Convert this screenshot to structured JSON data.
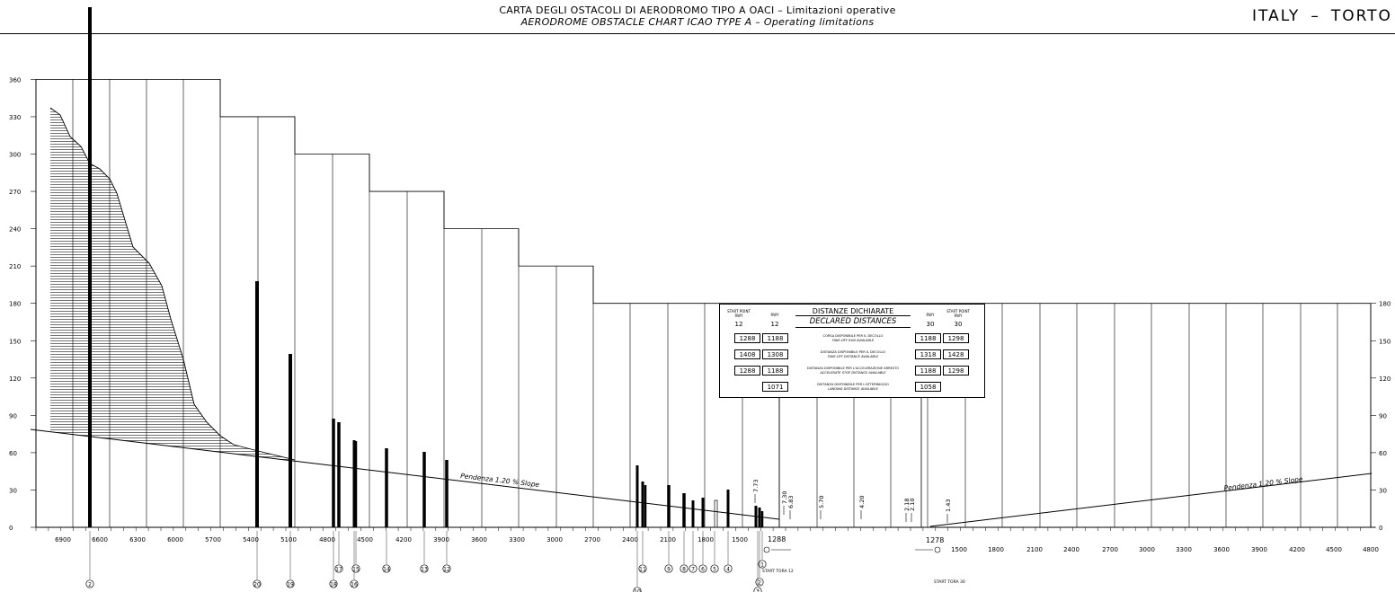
{
  "header": {
    "title_it": "CARTA DEGLI OSTACOLI DI AERODROMO      TIPO A    OACI   –  Limitazioni operative",
    "title_en": "AERODROME OBSTACLE CHART    ICAO TYPE A    –    Operating limitations",
    "country": "ITALY",
    "dash": "–",
    "airport_partial": "TORTO"
  },
  "y_axis_left": {
    "ticks": [
      "0",
      "30",
      "60",
      "90",
      "120",
      "150",
      "180",
      "210",
      "240",
      "270",
      "300",
      "330",
      "360"
    ]
  },
  "y_axis_right": {
    "ticks": [
      "0",
      "30",
      "60",
      "90",
      "120",
      "150",
      "180"
    ]
  },
  "x_axis_left": {
    "ticks": [
      "6900",
      "6600",
      "6300",
      "6000",
      "5700",
      "5400",
      "5100",
      "4800",
      "4500",
      "4200",
      "3900",
      "3600",
      "3300",
      "3000",
      "2700",
      "2400",
      "2100",
      "1800",
      "1500"
    ]
  },
  "x_axis_right": {
    "ticks": [
      "1500",
      "1800",
      "2100",
      "2400",
      "2700",
      "3000",
      "3300",
      "3600",
      "3900",
      "4200",
      "4500",
      "4800"
    ]
  },
  "runway": {
    "end_left_value": "1288",
    "end_right_value": "1278",
    "start_tora_12": "START TORA 12",
    "start_tora_30": "START TORA 30",
    "elev_labels": [
      "7.73",
      "7.30",
      "6.83",
      "5.70",
      "4.20",
      "2.18",
      "2.10",
      "1.43"
    ]
  },
  "slopes": {
    "left": {
      "label": "Pendenza",
      "value": "1.20",
      "unit": "%",
      "label_en": "Slope"
    },
    "right": {
      "label": "Pendenza",
      "value": "1.20",
      "unit": "%",
      "label_en": "Slope"
    }
  },
  "obstacle_ids": [
    "2",
    "20",
    "19",
    "18",
    "17",
    "16",
    "15",
    "14",
    "13",
    "12",
    "10",
    "11",
    "9",
    "8",
    "7",
    "6",
    "5",
    "4",
    "1",
    "2",
    "3"
  ],
  "declared_distances": {
    "title_it": "DISTANZE DICHIARATE",
    "title_en": "DECLARED DISTANCES",
    "col_start12": "START POINT RWY",
    "col_start12_num": "12",
    "col_rwy12": "RWY",
    "col_rwy12_num": "12",
    "col_rwy30": "RWY",
    "col_rwy30_num": "30",
    "col_start30": "START POINT RWY",
    "col_start30_num": "30",
    "rows": [
      {
        "it": "CORSA DISPONIBILE PER IL DECOLLO",
        "en": "TAKE-OFF RUN AVAILABLE",
        "sp12": "1288",
        "r12": "1188",
        "r30": "1188",
        "sp30": "1298"
      },
      {
        "it": "DISTANZA DISPONIBILE PER IL DECOLLO",
        "en": "TAKE-OFF DISTANCE AVAILABLE",
        "sp12": "1408",
        "r12": "1308",
        "r30": "1318",
        "sp30": "1428"
      },
      {
        "it": "DISTANZA DISPONIBILE PER L'ACCELERAZIONE ARRESTO",
        "en": "ACCELERATE STOP DISTANCE AVAILABLE",
        "sp12": "1288",
        "r12": "1188",
        "r30": "1188",
        "sp30": "1298"
      },
      {
        "it": "DISTANZA DISPONIBILE PER L'ATTERRAGGIO",
        "en": "LANDING DISTANCE AVAILABLE",
        "sp12": "",
        "r12": "1071",
        "r30": "1058",
        "sp30": ""
      }
    ]
  }
}
